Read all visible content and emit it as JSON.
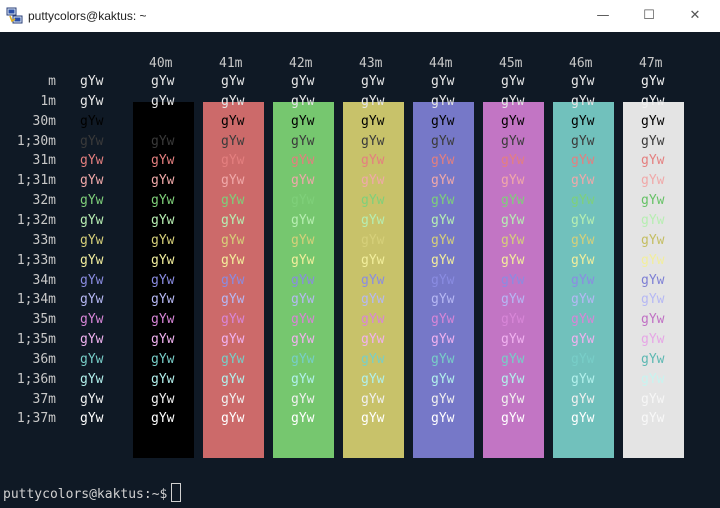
{
  "window": {
    "title": "puttycolors@kaktus: ~",
    "icon": "putty-icon",
    "controls": {
      "minimize": "—",
      "maximize": "☐",
      "close": "✕"
    }
  },
  "terminal": {
    "columns": [
      {
        "header": "",
        "bg": null
      },
      {
        "header": "40m",
        "bg": "#000000"
      },
      {
        "header": "41m",
        "bg": "#cc6a6a"
      },
      {
        "header": "42m",
        "bg": "#76c76f"
      },
      {
        "header": "43m",
        "bg": "#c8c26a"
      },
      {
        "header": "44m",
        "bg": "#7678c8"
      },
      {
        "header": "45m",
        "bg": "#c275c4"
      },
      {
        "header": "46m",
        "bg": "#71c1bc"
      },
      {
        "header": "47m",
        "bg": "#e4e4e4"
      }
    ],
    "rows": [
      {
        "label": "m",
        "fg": "#e8e8e8",
        "fg47": "#f2f2f2"
      },
      {
        "label": "1m",
        "fg": "#e8e8e8",
        "fg47": "#f2f2f2"
      },
      {
        "label": "30m",
        "fg": "#000000",
        "fg47": "#000000"
      },
      {
        "label": "1;30m",
        "fg": "#3a3a3a",
        "fg47": "#3a3a3a"
      },
      {
        "label": "31m",
        "fg": "#e47f7f",
        "fg47": "#e47f7f"
      },
      {
        "label": "1;31m",
        "fg": "#f0a9a9",
        "fg47": "#f0a9a9"
      },
      {
        "label": "32m",
        "fg": "#7fd07a",
        "fg47": "#66c266"
      },
      {
        "label": "1;32m",
        "fg": "#b7eeb2",
        "fg47": "#b7eeb2"
      },
      {
        "label": "33m",
        "fg": "#d6d07a",
        "fg47": "#c4be62"
      },
      {
        "label": "1;33m",
        "fg": "#f2ee9c",
        "fg47": "#f2ee9c"
      },
      {
        "label": "34m",
        "fg": "#8a8ce2",
        "fg47": "#7d7fd5"
      },
      {
        "label": "1;34m",
        "fg": "#b6b8f4",
        "fg47": "#b6b8f4"
      },
      {
        "label": "35m",
        "fg": "#d886d8",
        "fg47": "#c070c4"
      },
      {
        "label": "1;35m",
        "fg": "#f0b2f0",
        "fg47": "#e6a6e6"
      },
      {
        "label": "36m",
        "fg": "#78cec8",
        "fg47": "#5cb8b2"
      },
      {
        "label": "1;36m",
        "fg": "#b2f0ec",
        "fg47": "#c8f4f0"
      },
      {
        "label": "37m",
        "fg": "#f0f0f0",
        "fg47": "#f6f6f6"
      },
      {
        "label": "1;37m",
        "fg": "#ffffff",
        "fg47": "#f8f8f8"
      }
    ],
    "sample_text": "gYw",
    "default_fg": "#d0d0d0",
    "prompt": "puttycolors@kaktus:~$"
  }
}
